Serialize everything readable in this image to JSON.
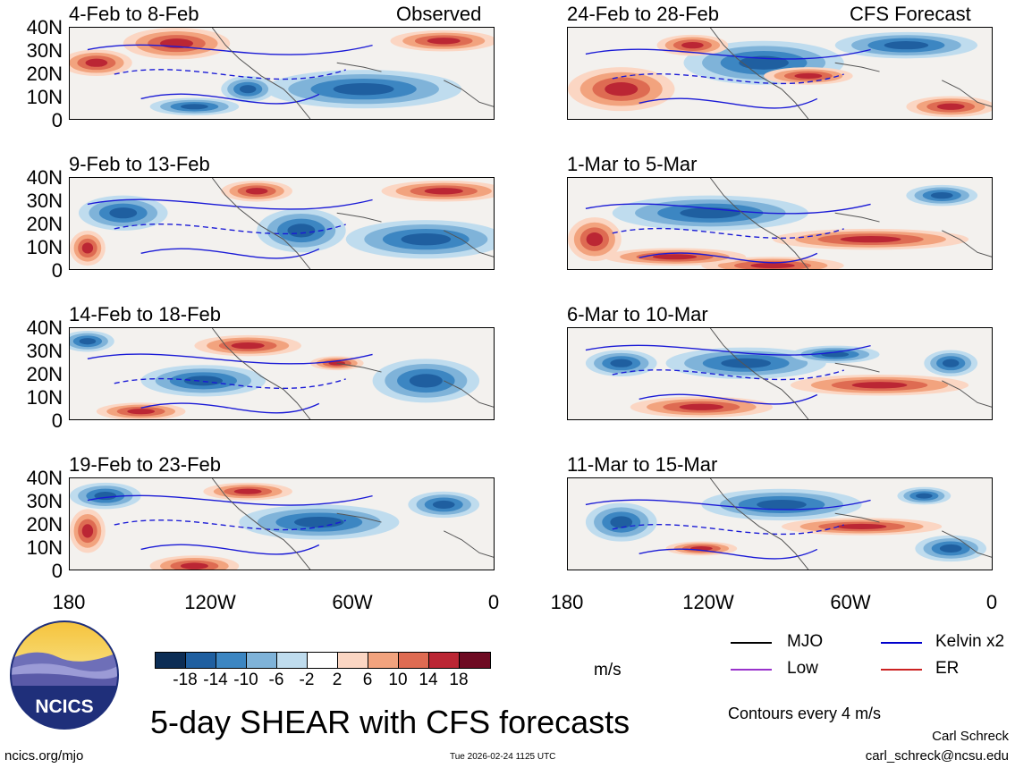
{
  "panels": {
    "observed_header": "Observed",
    "forecast_header": "CFS Forecast",
    "left": [
      {
        "title": "4-Feb to 8-Feb"
      },
      {
        "title": "9-Feb to 13-Feb"
      },
      {
        "title": "14-Feb to 18-Feb"
      },
      {
        "title": "19-Feb to 23-Feb"
      }
    ],
    "right": [
      {
        "title": "24-Feb to 28-Feb"
      },
      {
        "title": "1-Mar to 5-Mar"
      },
      {
        "title": "6-Mar to 10-Mar"
      },
      {
        "title": "11-Mar to 15-Mar"
      }
    ]
  },
  "axes": {
    "y_ticks": [
      "40N",
      "30N",
      "20N",
      "10N",
      "0"
    ],
    "x_ticks": [
      "180",
      "120W",
      "60W",
      "0"
    ]
  },
  "colorbar": {
    "colors": [
      "#0c2d55",
      "#1f5fa0",
      "#3c86c2",
      "#7fb3d9",
      "#bfdcee",
      "#ffffff",
      "#fbd6c3",
      "#f2a37e",
      "#de6b52",
      "#bb2634",
      "#6e0a22"
    ],
    "ticks": [
      "-18",
      "-14",
      "-10",
      "-6",
      "-2",
      "2",
      "6",
      "10",
      "14",
      "18"
    ],
    "unit": "m/s"
  },
  "legend": {
    "items": [
      {
        "label": "MJO",
        "color": "#000000"
      },
      {
        "label": "Kelvin x2",
        "color": "#0000cc"
      },
      {
        "label": "Low",
        "color": "#9933cc"
      },
      {
        "label": "ER",
        "color": "#cc2222"
      }
    ],
    "contour_note": "Contours every 4 m/s"
  },
  "footer": {
    "title": "5-day SHEAR with CFS forecasts",
    "logo_text": "NCICS",
    "site": "ncics.org/mjo",
    "timestamp": "Tue 2026-02-24 1125 UTC",
    "author": "Carl Schreck",
    "email": "carl_schreck@ncsu.edu"
  }
}
